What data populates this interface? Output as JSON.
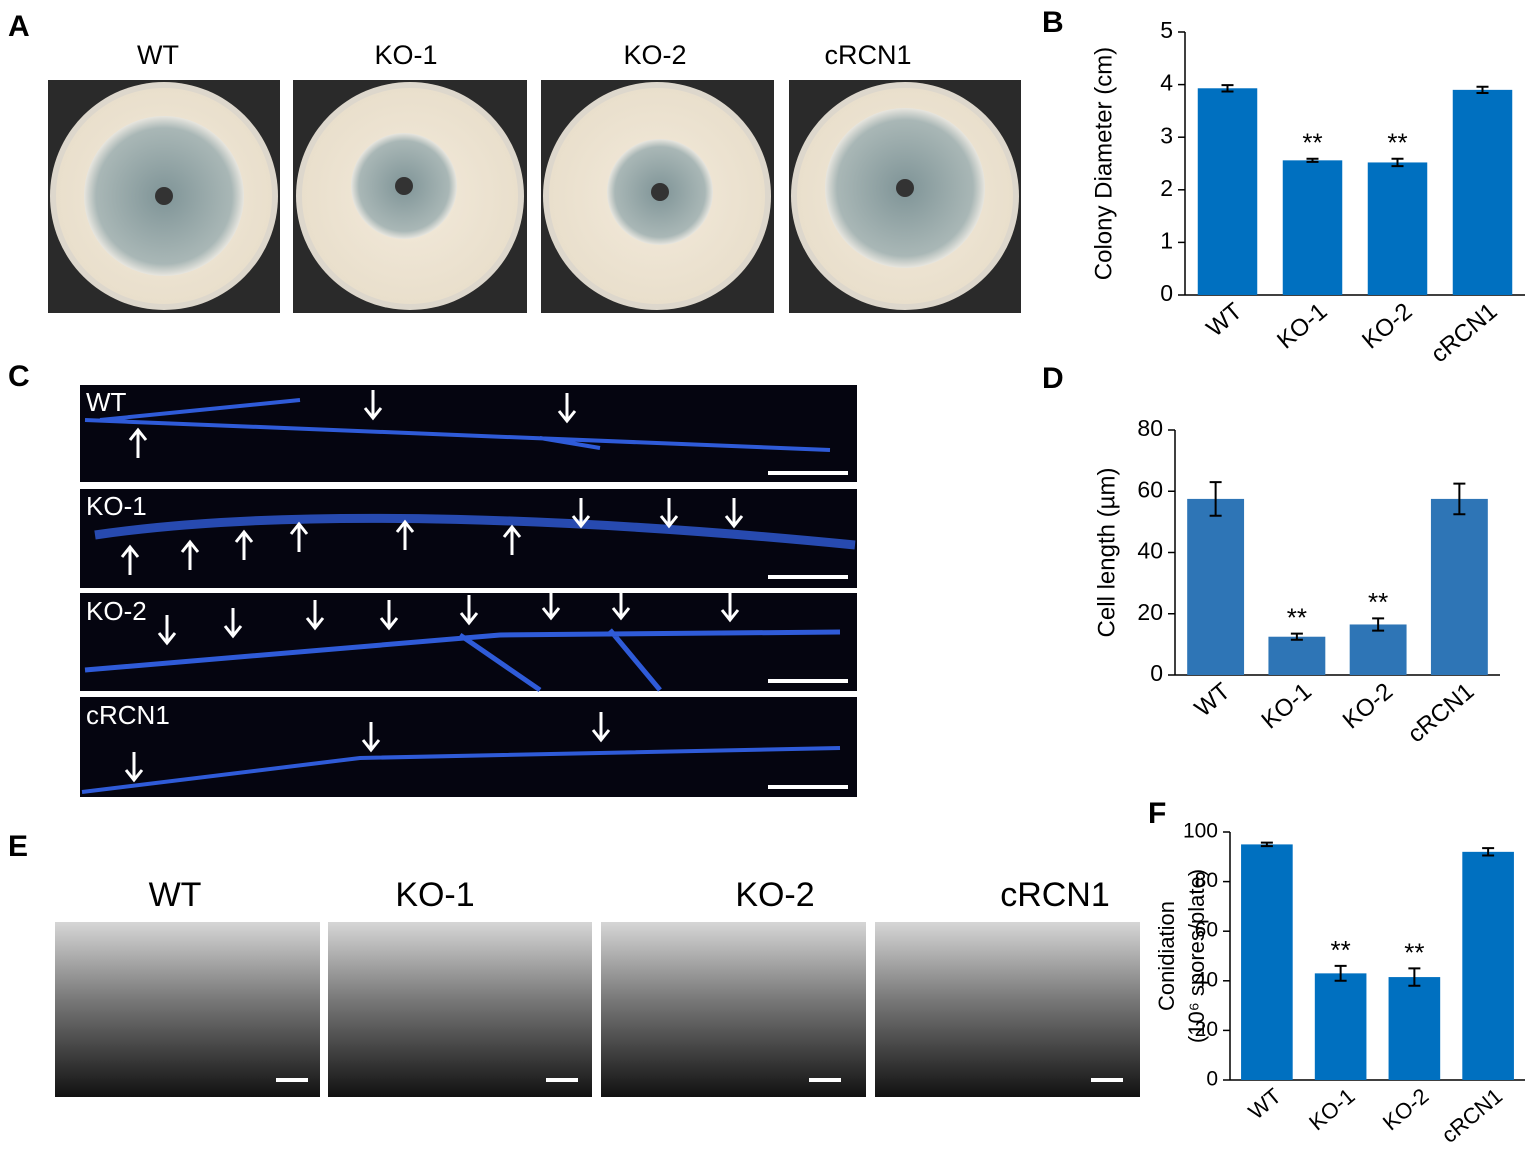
{
  "figure": {
    "letters": [
      "A",
      "B",
      "C",
      "D",
      "E",
      "F"
    ],
    "plates": [
      "WT",
      "KO-1",
      "KO-2",
      "cRCN1"
    ],
    "hyphae": [
      "WT",
      "KO-1",
      "KO-2",
      "cRCN1"
    ],
    "conidiophores": [
      "WT",
      "KO-1",
      "KO-2",
      "cRCN1"
    ]
  },
  "chart_data": [
    {
      "type": "bar",
      "ylabel": [
        "Colony Diameter (cm)"
      ],
      "categories": [
        "WT",
        "KO-1",
        "KO-2",
        "cRCN1"
      ],
      "values": [
        3.93,
        2.56,
        2.52,
        3.9
      ],
      "errors": [
        0.06,
        0.03,
        0.07,
        0.06
      ],
      "annotations": [
        null,
        "**",
        "**",
        null
      ],
      "color": "#0070c0",
      "ylim": [
        0,
        5
      ],
      "yticks": [
        0,
        1,
        2,
        3,
        4,
        5
      ]
    },
    {
      "type": "bar",
      "ylabel": [
        "Cell length (µm)"
      ],
      "categories": [
        "WT",
        "KO-1",
        "KO-2",
        "cRCN1"
      ],
      "values": [
        57.5,
        12.5,
        16.5,
        57.5
      ],
      "errors": [
        5.5,
        1,
        2,
        5
      ],
      "annotations": [
        null,
        "**",
        "**",
        null
      ],
      "color": "#2e75b6",
      "ylim": [
        0,
        80
      ],
      "yticks": [
        0,
        20,
        40,
        60,
        80
      ]
    },
    {
      "type": "bar",
      "ylabel": [
        "Conidiation",
        "(10⁶ spores/plate)"
      ],
      "categories": [
        "WT",
        "KO-1",
        "KO-2",
        "cRCN1"
      ],
      "values": [
        95,
        43,
        41.5,
        92
      ],
      "errors": [
        0.7,
        3,
        3.5,
        1.5
      ],
      "annotations": [
        null,
        "**",
        "**",
        null
      ],
      "color": "#0070c0",
      "ylim": [
        0,
        100
      ],
      "yticks": [
        0,
        20,
        40,
        60,
        80,
        100
      ]
    }
  ]
}
